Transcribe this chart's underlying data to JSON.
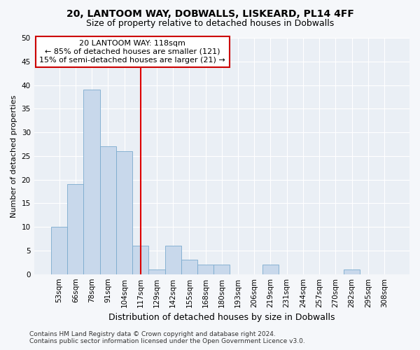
{
  "title1": "20, LANTOOM WAY, DOBWALLS, LISKEARD, PL14 4FF",
  "title2": "Size of property relative to detached houses in Dobwalls",
  "xlabel": "Distribution of detached houses by size in Dobwalls",
  "ylabel": "Number of detached properties",
  "categories": [
    "53sqm",
    "66sqm",
    "78sqm",
    "91sqm",
    "104sqm",
    "117sqm",
    "129sqm",
    "142sqm",
    "155sqm",
    "168sqm",
    "180sqm",
    "193sqm",
    "206sqm",
    "219sqm",
    "231sqm",
    "244sqm",
    "257sqm",
    "270sqm",
    "282sqm",
    "295sqm",
    "308sqm"
  ],
  "values": [
    10,
    19,
    39,
    27,
    26,
    6,
    1,
    6,
    3,
    2,
    2,
    0,
    0,
    2,
    0,
    0,
    0,
    0,
    1,
    0,
    0
  ],
  "bar_color": "#c8d8eb",
  "bar_edge_color": "#7aaace",
  "highlight_index": 5,
  "highlight_line_color": "#dd0000",
  "annotation_text": "20 LANTOOM WAY: 118sqm\n← 85% of detached houses are smaller (121)\n15% of semi-detached houses are larger (21) →",
  "annotation_box_color": "#ffffff",
  "annotation_box_edge": "#cc0000",
  "ylim": [
    0,
    50
  ],
  "yticks": [
    0,
    5,
    10,
    15,
    20,
    25,
    30,
    35,
    40,
    45,
    50
  ],
  "bg_color": "#f5f7fa",
  "plot_bg_color": "#eaeff5",
  "grid_color": "#ffffff",
  "footer_text": "Contains HM Land Registry data © Crown copyright and database right 2024.\nContains public sector information licensed under the Open Government Licence v3.0.",
  "title1_fontsize": 10,
  "title2_fontsize": 9,
  "xlabel_fontsize": 9,
  "ylabel_fontsize": 8,
  "tick_fontsize": 7.5,
  "annotation_fontsize": 8,
  "footer_fontsize": 6.5
}
